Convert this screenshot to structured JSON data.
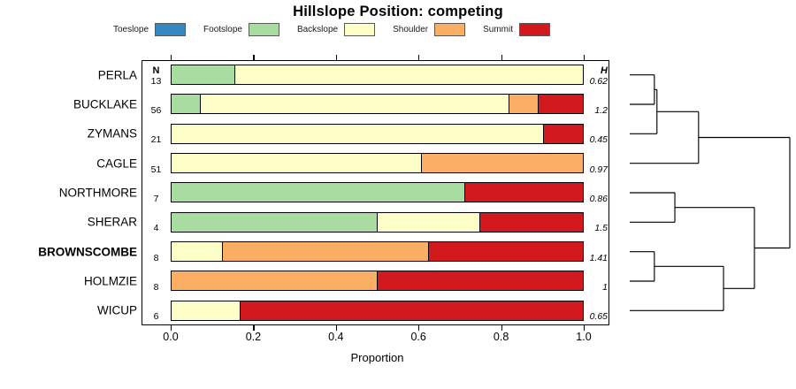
{
  "title": "Hillslope Position: competing",
  "legend": {
    "items": [
      {
        "label": "Toeslope",
        "color": "#3787C0"
      },
      {
        "label": "Footslope",
        "color": "#A9DCA0"
      },
      {
        "label": "Backslope",
        "color": "#FDFEC8"
      },
      {
        "label": "Shoulder",
        "color": "#FBAF64"
      },
      {
        "label": "Summit",
        "color": "#D2191D"
      }
    ]
  },
  "columns": {
    "n_header": "N",
    "h_header": "H"
  },
  "x_axis": {
    "label": "Proportion",
    "tick_values": [
      0,
      0.2,
      0.4,
      0.6,
      0.8,
      1.0
    ],
    "tick_labels": [
      "0.0",
      "0.2",
      "0.4",
      "0.6",
      "0.8",
      "1.0"
    ]
  },
  "chart_data": {
    "type": "bar",
    "subtype": "horizontal-stacked-proportion",
    "title": "Hillslope Position: competing",
    "xlabel": "Proportion",
    "xlim": [
      0,
      1
    ],
    "legend_position": "top",
    "categories": [
      "PERLA",
      "BUCKLAKE",
      "ZYMANS",
      "CAGLE",
      "NORTHMORE",
      "SHERAR",
      "BROWNSCOMBE",
      "HOLMZIE",
      "WICUP"
    ],
    "bold_category": "BROWNSCOMBE",
    "n_values": [
      13,
      56,
      21,
      51,
      7,
      4,
      8,
      8,
      6
    ],
    "h_values": [
      "0.62",
      "1.2",
      "0.45",
      "0.97",
      "0.86",
      "1.5",
      "1.41",
      "1",
      "0.65"
    ],
    "series": [
      {
        "name": "Toeslope",
        "color": "#3787C0",
        "values": [
          0,
          0,
          0,
          0,
          0,
          0,
          0,
          0,
          0
        ]
      },
      {
        "name": "Footslope",
        "color": "#A9DCA0",
        "values": [
          0.154,
          0.071,
          0,
          0,
          0.714,
          0.5,
          0,
          0,
          0
        ]
      },
      {
        "name": "Backslope",
        "color": "#FDFEC8",
        "values": [
          0.846,
          0.75,
          0.905,
          0.608,
          0,
          0.25,
          0.125,
          0,
          0.167
        ]
      },
      {
        "name": "Shoulder",
        "color": "#FBAF64",
        "values": [
          0,
          0.071,
          0,
          0.392,
          0,
          0,
          0.5,
          0.5,
          0
        ]
      },
      {
        "name": "Summit",
        "color": "#D2191D",
        "values": [
          0,
          0.108,
          0.095,
          0,
          0.286,
          0.25,
          0.375,
          0.5,
          0.833
        ]
      }
    ],
    "dendrogram": {
      "side": "right",
      "leaf_order": [
        "PERLA",
        "BUCKLAKE",
        "ZYMANS",
        "CAGLE",
        "NORTHMORE",
        "SHERAR",
        "BROWNSCOMBE",
        "HOLMZIE",
        "WICUP"
      ],
      "merges": [
        {
          "a": -1,
          "b": -2,
          "h": 0.154
        },
        {
          "a": 1,
          "b": -3,
          "h": 0.17
        },
        {
          "a": 2,
          "b": -4,
          "h": 0.43
        },
        {
          "a": -5,
          "b": -6,
          "h": 0.282
        },
        {
          "a": -7,
          "b": -8,
          "h": 0.154
        },
        {
          "a": 5,
          "b": -9,
          "h": 0.586
        },
        {
          "a": 4,
          "b": 6,
          "h": 0.779
        },
        {
          "a": 3,
          "b": 7,
          "h": 1.0
        }
      ]
    }
  }
}
